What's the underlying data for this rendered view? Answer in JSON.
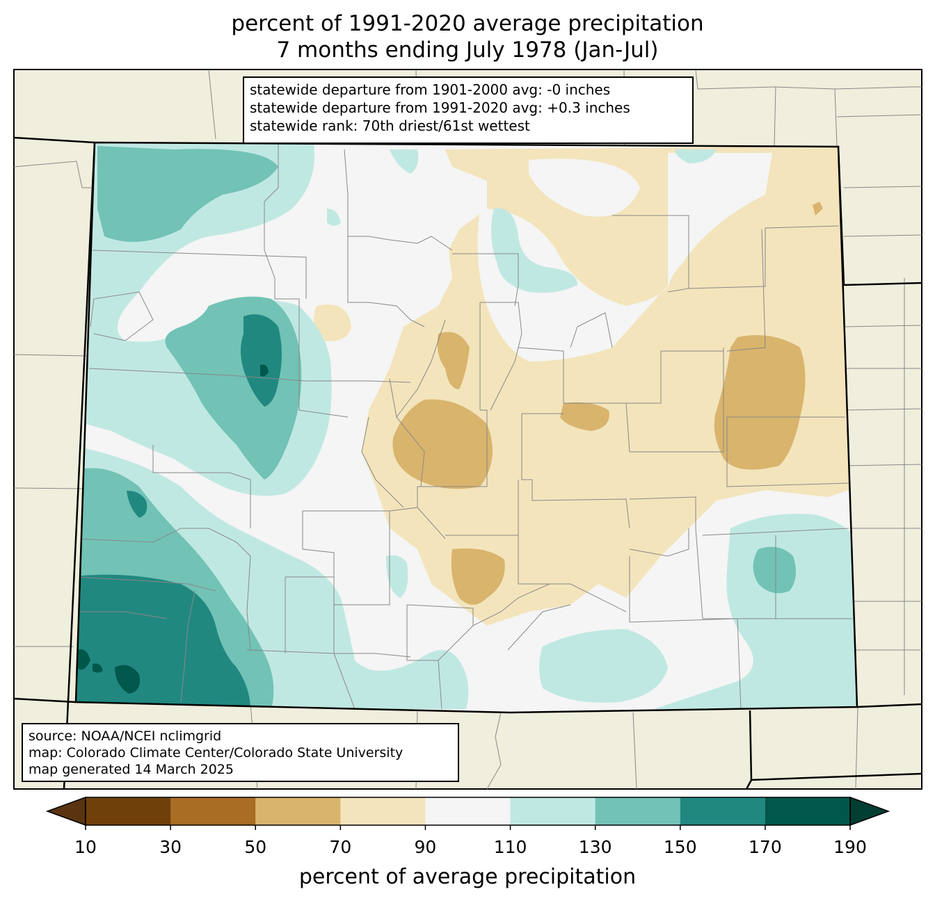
{
  "title": {
    "line1": "percent of 1991-2020 average precipitation",
    "line2": "7 months ending July 1978 (Jan-Jul)"
  },
  "stats_box": {
    "line1": "statewide departure from 1901-2000 avg: -0 inches",
    "line2": "statewide departure from 1991-2020 avg: +0.3 inches",
    "line3": "statewide rank: 70th driest/61st wettest"
  },
  "source_box": {
    "line1": "source: NOAA/NCEI nclimgrid",
    "line2": "map: Colorado Climate Center/Colorado State University",
    "line3": "map generated 14 March 2025"
  },
  "colorbar": {
    "label": "percent of average precipitation",
    "ticks": [
      "10",
      "30",
      "50",
      "70",
      "90",
      "110",
      "130",
      "150",
      "170",
      "190"
    ],
    "colors": [
      "#70400b",
      "#a96d24",
      "#d9b46d",
      "#f3e4bc",
      "#f4f5f4",
      "#c0e8e2",
      "#72c2b6",
      "#218880",
      "#00574b"
    ],
    "under_color": "#5a3410",
    "over_color": "#003d33"
  },
  "map_colors": {
    "land_outside": "#f0eedc",
    "state_border": "#000000",
    "county_lines": "#888888"
  }
}
